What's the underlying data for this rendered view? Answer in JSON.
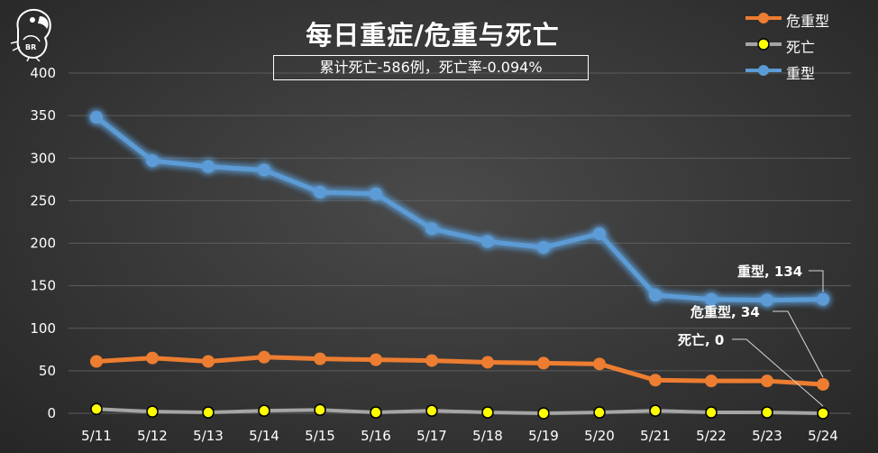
{
  "title": "每日重症/危重与死亡",
  "subtitle": "累计死亡-586例，死亡率-0.094%",
  "logo_text": "BR",
  "chart_data": {
    "type": "line",
    "categories": [
      "5/11",
      "5/12",
      "5/13",
      "5/14",
      "5/15",
      "5/16",
      "5/17",
      "5/18",
      "5/19",
      "5/20",
      "5/21",
      "5/22",
      "5/23",
      "5/24"
    ],
    "ylim": [
      0,
      400
    ],
    "yticks": [
      0,
      50,
      100,
      150,
      200,
      250,
      300,
      350,
      400
    ],
    "grid": true,
    "legend_position": "top-right",
    "series": [
      {
        "name": "危重型",
        "color": "#ed7d31",
        "values": [
          61,
          65,
          61,
          66,
          64,
          63,
          62,
          60,
          59,
          58,
          39,
          38,
          38,
          34
        ]
      },
      {
        "name": "死亡",
        "color": "#a5a5a5",
        "marker_fill": "#ffff00",
        "values": [
          5,
          2,
          1,
          3,
          4,
          1,
          3,
          1,
          0,
          1,
          3,
          1,
          1,
          0
        ]
      },
      {
        "name": "重型",
        "color": "#5b9bd5",
        "values": [
          348,
          297,
          290,
          286,
          260,
          258,
          217,
          202,
          195,
          211,
          139,
          134,
          133,
          134
        ]
      }
    ],
    "annotations": [
      {
        "series": "重型",
        "text": "重型, 134"
      },
      {
        "series": "危重型",
        "text": "危重型, 34"
      },
      {
        "series": "死亡",
        "text": "死亡, 0"
      }
    ]
  }
}
